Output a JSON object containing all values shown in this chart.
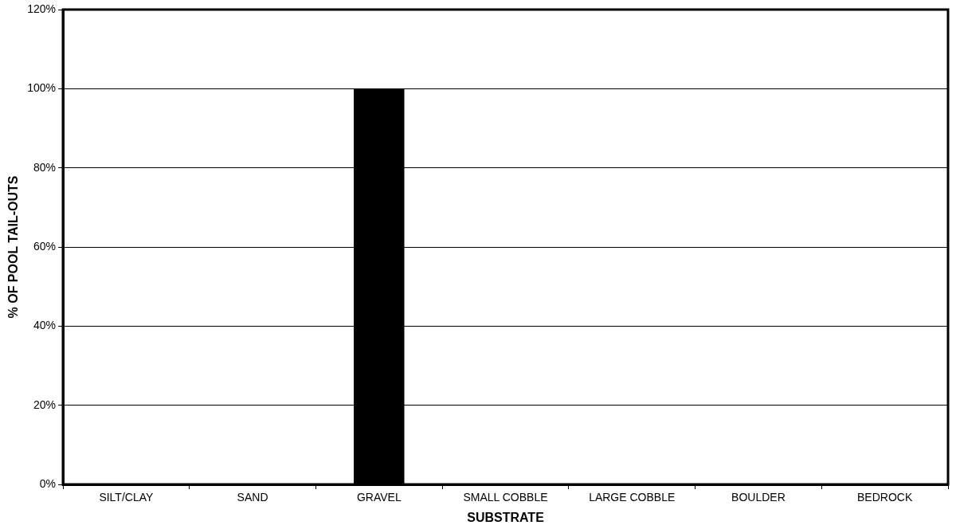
{
  "chart_data": {
    "type": "bar",
    "xlabel": "SUBSTRATE",
    "ylabel": "% OF POOL TAIL-OUTS",
    "categories": [
      "SILT/CLAY",
      "SAND",
      "GRAVEL",
      "SMALL COBBLE",
      "LARGE COBBLE",
      "BOULDER",
      "BEDROCK"
    ],
    "values": [
      0,
      0,
      100,
      0,
      0,
      0,
      0
    ],
    "color": "#000000",
    "ylim": [
      0,
      120
    ],
    "yticks": [
      {
        "value": 0,
        "label": "0%"
      },
      {
        "value": 20,
        "label": "20%"
      },
      {
        "value": 40,
        "label": "40%"
      },
      {
        "value": 60,
        "label": "60%"
      },
      {
        "value": 80,
        "label": "80%"
      },
      {
        "value": 100,
        "label": "100%"
      },
      {
        "value": 120,
        "label": "120%"
      }
    ],
    "grid": "y",
    "legend": false
  }
}
